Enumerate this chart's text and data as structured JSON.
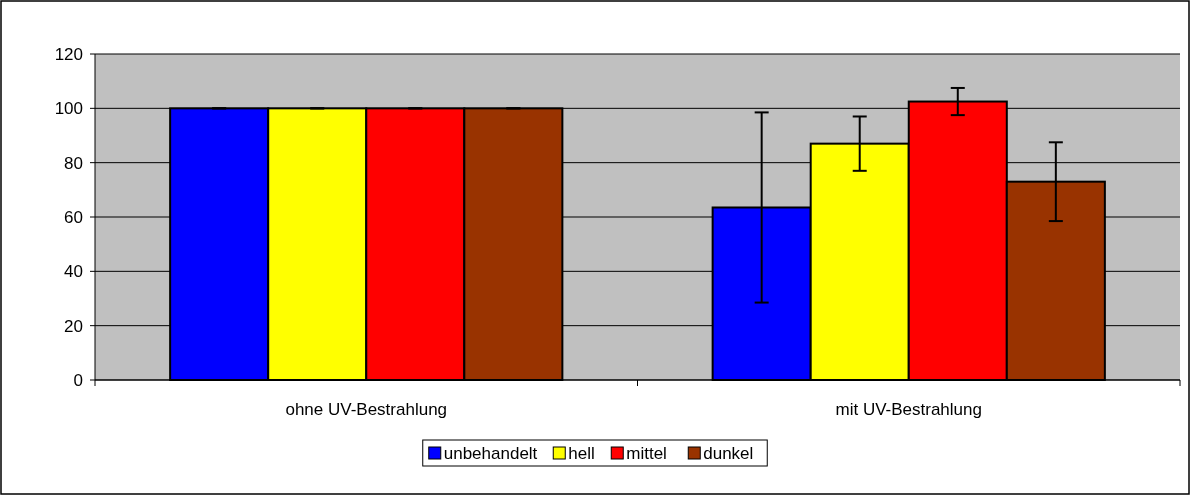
{
  "chart_data": {
    "type": "bar",
    "categories": [
      "ohne UV-Bestrahlung",
      "mit UV-Bestrahlung"
    ],
    "series": [
      {
        "name": "unbehandelt",
        "color": "#0000ff",
        "values": [
          100,
          63.5
        ],
        "errors": [
          0,
          35
        ]
      },
      {
        "name": "hell",
        "color": "#ffff00",
        "values": [
          100,
          87
        ],
        "errors": [
          0,
          10
        ]
      },
      {
        "name": "mittel",
        "color": "#ff0000",
        "values": [
          100,
          102.5
        ],
        "errors": [
          0,
          5
        ]
      },
      {
        "name": "dunkel",
        "color": "#993300",
        "values": [
          100,
          73
        ],
        "errors": [
          0,
          14.5
        ]
      }
    ],
    "ylim": [
      0,
      120
    ],
    "yticks": [
      0,
      20,
      40,
      60,
      80,
      100,
      120
    ],
    "grid": "y",
    "legend": "bottom"
  }
}
